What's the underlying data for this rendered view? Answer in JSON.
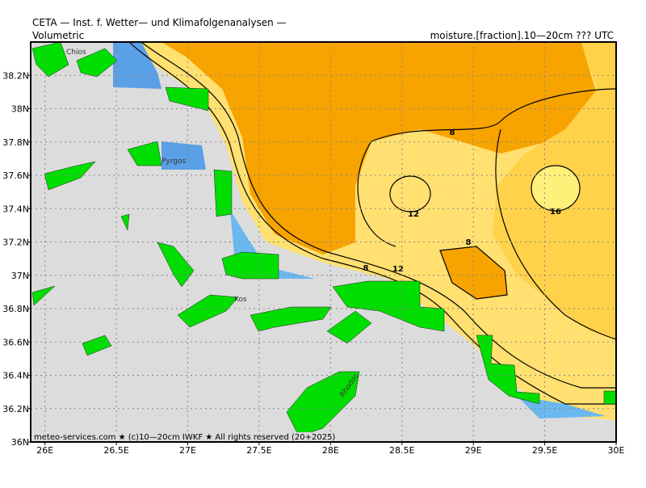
{
  "header": {
    "title": "CETA — Inst. f. Wetter— und Klimafolgenanalysen —",
    "left": "Volumetric",
    "right": "moisture.[fraction].10—20cm ??? UTC"
  },
  "map": {
    "xlim": [
      25.9,
      30
    ],
    "ylim": [
      36,
      38.4
    ],
    "xticks": [
      {
        "value": 26,
        "label": "26E"
      },
      {
        "value": 26.5,
        "label": "26.5E"
      },
      {
        "value": 27,
        "label": "27E"
      },
      {
        "value": 27.5,
        "label": "27.5E"
      },
      {
        "value": 28,
        "label": "28E"
      },
      {
        "value": 28.5,
        "label": "28.5E"
      },
      {
        "value": 29,
        "label": "29E"
      },
      {
        "value": 29.5,
        "label": "29.5E"
      },
      {
        "value": 30,
        "label": "30E"
      }
    ],
    "yticks": [
      {
        "value": 36,
        "label": "36N"
      },
      {
        "value": 36.2,
        "label": "36.2N"
      },
      {
        "value": 36.4,
        "label": "36.4N"
      },
      {
        "value": 36.6,
        "label": "36.6N"
      },
      {
        "value": 36.8,
        "label": "36.8N"
      },
      {
        "value": 37,
        "label": "37N"
      },
      {
        "value": 37.2,
        "label": "37.2N"
      },
      {
        "value": 37.4,
        "label": "37.4N"
      },
      {
        "value": 37.6,
        "label": "37.6N"
      },
      {
        "value": 37.8,
        "label": "37.8N"
      },
      {
        "value": 38,
        "label": "38N"
      },
      {
        "value": 38.2,
        "label": "38.2N"
      }
    ],
    "contour_labels": [
      8,
      12,
      16,
      8,
      8,
      12
    ],
    "places": [
      "Chios",
      "Pyrgos",
      "Kos",
      "Rhodos"
    ],
    "footer": "meteo-services.com ★ (c)10—20cm IWKF ★ All rights reserved (20+2025)"
  }
}
